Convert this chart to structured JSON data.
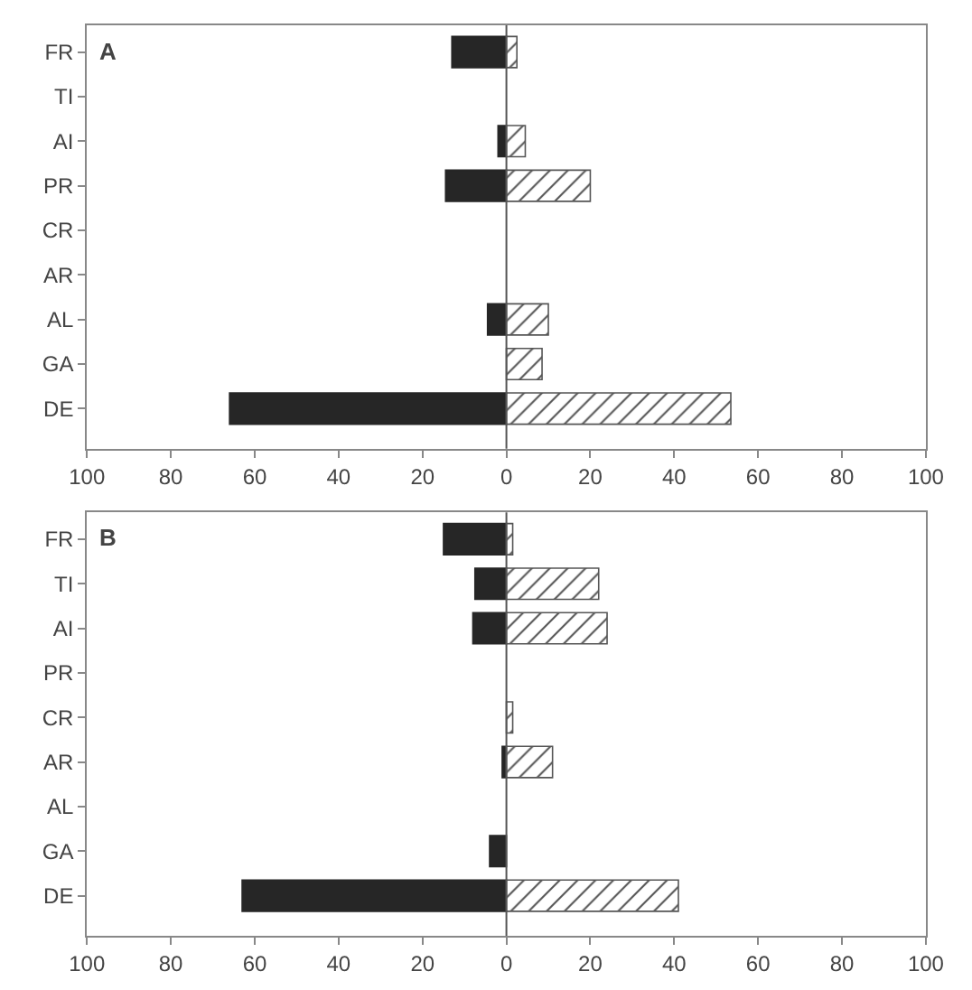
{
  "chart_data": [
    {
      "type": "bar",
      "orientation": "horizontal",
      "stacked": true,
      "annotations": [
        "A"
      ],
      "categories": [
        "FR",
        "TI",
        "AI",
        "PR",
        "CR",
        "AR",
        "AL",
        "GA",
        "DE"
      ],
      "series": [
        {
          "color": "#262626",
          "values": [
            -13,
            0,
            -2,
            -14.5,
            0,
            0,
            -4.5,
            0,
            -66
          ]
        },
        {
          "color": "#555555",
          "values": [
            2.5,
            null,
            4.5,
            20,
            null,
            0,
            10,
            8.5,
            53.5
          ]
        }
      ],
      "ref_lines": [
        {
          "axis": "x",
          "value": 0,
          "color": "#555555"
        }
      ],
      "xlim": [
        -100,
        100
      ],
      "xticks": [
        {
          "value": -100,
          "label": "100"
        },
        {
          "value": -80,
          "label": "80"
        },
        {
          "value": -60,
          "label": "60"
        },
        {
          "value": -40,
          "label": "40"
        },
        {
          "value": -20,
          "label": "20"
        },
        0,
        20,
        40,
        60,
        80,
        100
      ]
    },
    {
      "type": "bar",
      "orientation": "horizontal",
      "stacked": true,
      "annotations": [
        "B"
      ],
      "categories": [
        "FR",
        "TI",
        "AI",
        "PR",
        "CR",
        "AR",
        "AL",
        "GA",
        "DE"
      ],
      "series": [
        {
          "color": "#262626",
          "values": [
            -15,
            -7.5,
            -8,
            0,
            0,
            -1,
            0,
            -4,
            -63
          ]
        },
        {
          "color": "#555555",
          "values": [
            1.5,
            22,
            24,
            0,
            1.5,
            11,
            0,
            0,
            41
          ]
        }
      ],
      "ref_lines": [
        {
          "axis": "x",
          "value": 0,
          "color": "#555555"
        }
      ],
      "xlim": [
        -100,
        100
      ],
      "xticks": [
        {
          "value": -100,
          "label": "100"
        },
        {
          "value": -80,
          "label": "80"
        },
        {
          "value": -60,
          "label": "60"
        },
        {
          "value": -40,
          "label": "40"
        },
        {
          "value": -20,
          "label": "20"
        },
        0,
        20,
        40,
        60,
        80,
        100
      ]
    }
  ]
}
